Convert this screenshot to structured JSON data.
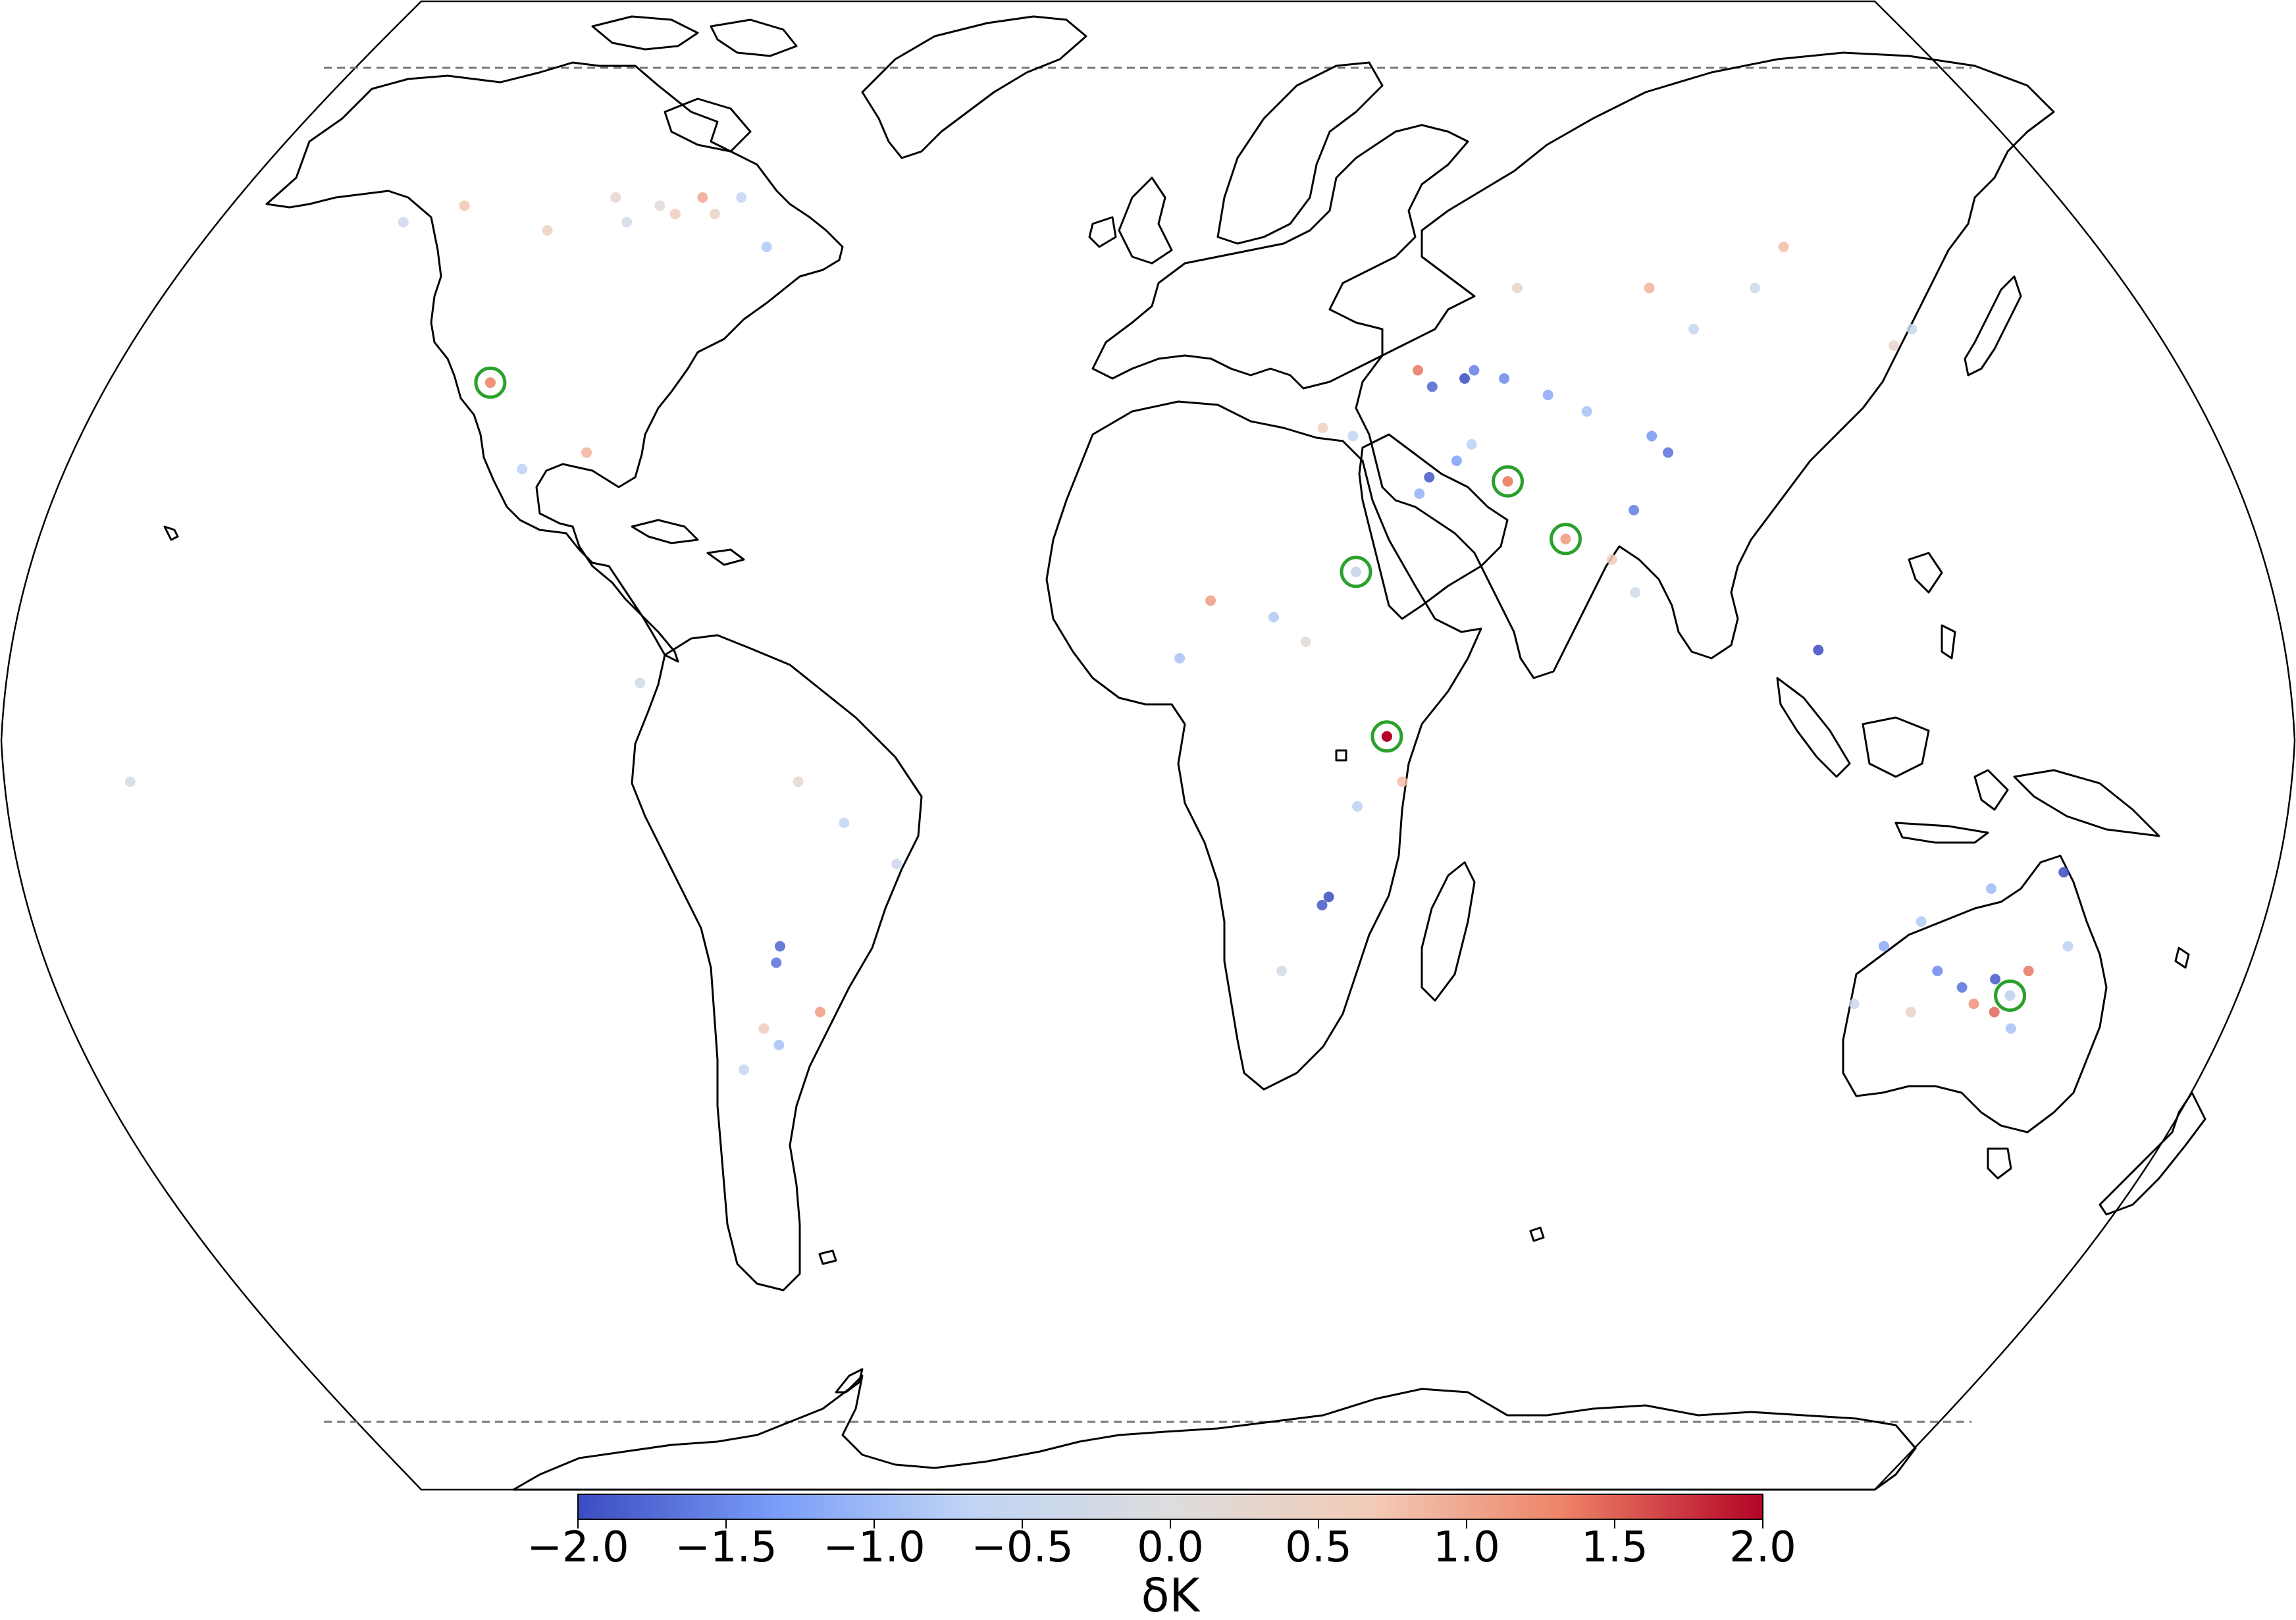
{
  "colorbar": {
    "label": "δK",
    "min": -2.0,
    "max": 2.0,
    "ticks": [
      "−2.0",
      "−1.5",
      "−1.0",
      "−0.5",
      "0.0",
      "0.5",
      "1.0",
      "1.5",
      "2.0"
    ],
    "colors": [
      "#3b4cc0",
      "#7b9ff9",
      "#c0d4f5",
      "#dddddd",
      "#f2cbb7",
      "#ee8468",
      "#b40426"
    ],
    "cmap": "coolwarm"
  },
  "map": {
    "projection": "Robinson",
    "dashed_latitudes": [
      75,
      -75
    ],
    "highlight_color": "#2ca02c",
    "highlighted_sites": [
      {
        "lon": -116,
        "lat": 43.5,
        "value": 1.2
      },
      {
        "lon": 33.5,
        "lat": 20.5,
        "value": -0.4
      },
      {
        "lon": 37.5,
        "lat": 0.5,
        "value": 2.0
      },
      {
        "lon": 60,
        "lat": 31.5,
        "value": 1.3
      },
      {
        "lon": 68,
        "lat": 24.5,
        "value": 1.0
      },
      {
        "lon": 143.5,
        "lat": -31,
        "value": -0.5
      }
    ]
  },
  "chart_data": {
    "type": "scatter",
    "title": "",
    "xlabel": "",
    "ylabel": "",
    "colorbar_label": "δK",
    "value_range": [
      -2.0,
      2.0
    ],
    "points": [
      {
        "lon": -116,
        "lat": 43.5,
        "v": 1.2
      },
      {
        "lon": 33.5,
        "lat": 20.5,
        "v": -0.4
      },
      {
        "lon": 37.5,
        "lat": 0.5,
        "v": 2.0
      },
      {
        "lon": 60,
        "lat": 31.5,
        "v": 1.3
      },
      {
        "lon": 68,
        "lat": 24.5,
        "v": 1.0
      },
      {
        "lon": 143.5,
        "lat": -31,
        "v": -0.5
      },
      {
        "lon": -96,
        "lat": 64,
        "v": 0.6
      },
      {
        "lon": -100,
        "lat": 65,
        "v": 0.1
      },
      {
        "lon": -92,
        "lat": 66,
        "v": 1.0
      },
      {
        "lon": -105,
        "lat": 63,
        "v": -0.3
      },
      {
        "lon": -88,
        "lat": 64,
        "v": 0.4
      },
      {
        "lon": -84,
        "lat": 66,
        "v": -0.6
      },
      {
        "lon": -110,
        "lat": 66,
        "v": 0.3
      },
      {
        "lon": -120,
        "lat": 62,
        "v": 0.5
      },
      {
        "lon": -140,
        "lat": 65,
        "v": 0.7
      },
      {
        "lon": -150,
        "lat": 63,
        "v": -0.4
      },
      {
        "lon": -75,
        "lat": 60,
        "v": -0.8
      },
      {
        "lon": 48,
        "lat": 45,
        "v": 1.4
      },
      {
        "lon": 50,
        "lat": 43,
        "v": -1.8
      },
      {
        "lon": 56,
        "lat": 44,
        "v": -2.0
      },
      {
        "lon": 58,
        "lat": 45,
        "v": -1.6
      },
      {
        "lon": 63,
        "lat": 44,
        "v": -1.5
      },
      {
        "lon": 70,
        "lat": 42,
        "v": -1.2
      },
      {
        "lon": 76,
        "lat": 40,
        "v": -0.9
      },
      {
        "lon": 86,
        "lat": 37,
        "v": -1.4
      },
      {
        "lon": 88,
        "lat": 35,
        "v": -1.7
      },
      {
        "lon": 52,
        "lat": 34,
        "v": -1.3
      },
      {
        "lon": 47,
        "lat": 32,
        "v": -1.9
      },
      {
        "lon": 55,
        "lat": 36,
        "v": -0.7
      },
      {
        "lon": 45,
        "lat": 30,
        "v": -1.1
      },
      {
        "lon": 30,
        "lat": 38,
        "v": 0.5
      },
      {
        "lon": 35,
        "lat": 37,
        "v": -0.6
      },
      {
        "lon": 80,
        "lat": 28,
        "v": -1.6
      },
      {
        "lon": 75,
        "lat": 22,
        "v": 0.6
      },
      {
        "lon": 78,
        "lat": 18,
        "v": -0.3
      },
      {
        "lon": 106,
        "lat": 11,
        "v": -2.0
      },
      {
        "lon": 115,
        "lat": 55,
        "v": -0.4
      },
      {
        "lon": 125,
        "lat": 60,
        "v": 0.8
      },
      {
        "lon": 140,
        "lat": 50,
        "v": -0.5
      },
      {
        "lon": 135,
        "lat": 48,
        "v": 0.3
      },
      {
        "lon": 95,
        "lat": 55,
        "v": 0.9
      },
      {
        "lon": 100,
        "lat": 50,
        "v": -0.6
      },
      {
        "lon": 70,
        "lat": 55,
        "v": 0.4
      },
      {
        "lon": 20,
        "lat": 15,
        "v": -0.8
      },
      {
        "lon": 25,
        "lat": 12,
        "v": 0.2
      },
      {
        "lon": 5,
        "lat": 10,
        "v": -0.9
      },
      {
        "lon": 10,
        "lat": 17,
        "v": 1.1
      },
      {
        "lon": 28,
        "lat": -20,
        "v": -1.9
      },
      {
        "lon": 29,
        "lat": -19,
        "v": -2.0
      },
      {
        "lon": 33,
        "lat": -8,
        "v": -0.7
      },
      {
        "lon": 40,
        "lat": -5,
        "v": 0.8
      },
      {
        "lon": 22,
        "lat": -28,
        "v": -0.2
      },
      {
        "lon": -60,
        "lat": -25,
        "v": -1.8
      },
      {
        "lon": -61,
        "lat": -27,
        "v": -1.7
      },
      {
        "lon": -55,
        "lat": -33,
        "v": 1.1
      },
      {
        "lon": -65,
        "lat": -35,
        "v": 0.6
      },
      {
        "lon": -63,
        "lat": -37,
        "v": -0.9
      },
      {
        "lon": -70,
        "lat": -40,
        "v": -0.5
      },
      {
        "lon": -48,
        "lat": -10,
        "v": -0.6
      },
      {
        "lon": -40,
        "lat": -15,
        "v": -0.4
      },
      {
        "lon": -55,
        "lat": -5,
        "v": 0.3
      },
      {
        "lon": -105,
        "lat": 33,
        "v": -0.7
      },
      {
        "lon": -95,
        "lat": 35,
        "v": 0.9
      },
      {
        "lon": -80,
        "lat": 7,
        "v": -0.3
      },
      {
        "lon": -160,
        "lat": -5,
        "v": -0.2
      },
      {
        "lon": 120,
        "lat": -25,
        "v": -1.2
      },
      {
        "lon": 125,
        "lat": -22,
        "v": -0.8
      },
      {
        "lon": 130,
        "lat": -28,
        "v": -1.5
      },
      {
        "lon": 135,
        "lat": -30,
        "v": -1.7
      },
      {
        "lon": 138,
        "lat": -32,
        "v": 1.2
      },
      {
        "lon": 140,
        "lat": -29,
        "v": -1.9
      },
      {
        "lon": 142,
        "lat": -33,
        "v": 1.5
      },
      {
        "lon": 145,
        "lat": -28,
        "v": 1.4
      },
      {
        "lon": 146,
        "lat": -35,
        "v": -0.9
      },
      {
        "lon": 118,
        "lat": -32,
        "v": -0.4
      },
      {
        "lon": 150,
        "lat": -25,
        "v": -0.7
      },
      {
        "lon": 146,
        "lat": -16,
        "v": -2.0
      },
      {
        "lon": 135,
        "lat": -18,
        "v": -1.0
      },
      {
        "lon": 128,
        "lat": -33,
        "v": 0.4
      }
    ]
  }
}
